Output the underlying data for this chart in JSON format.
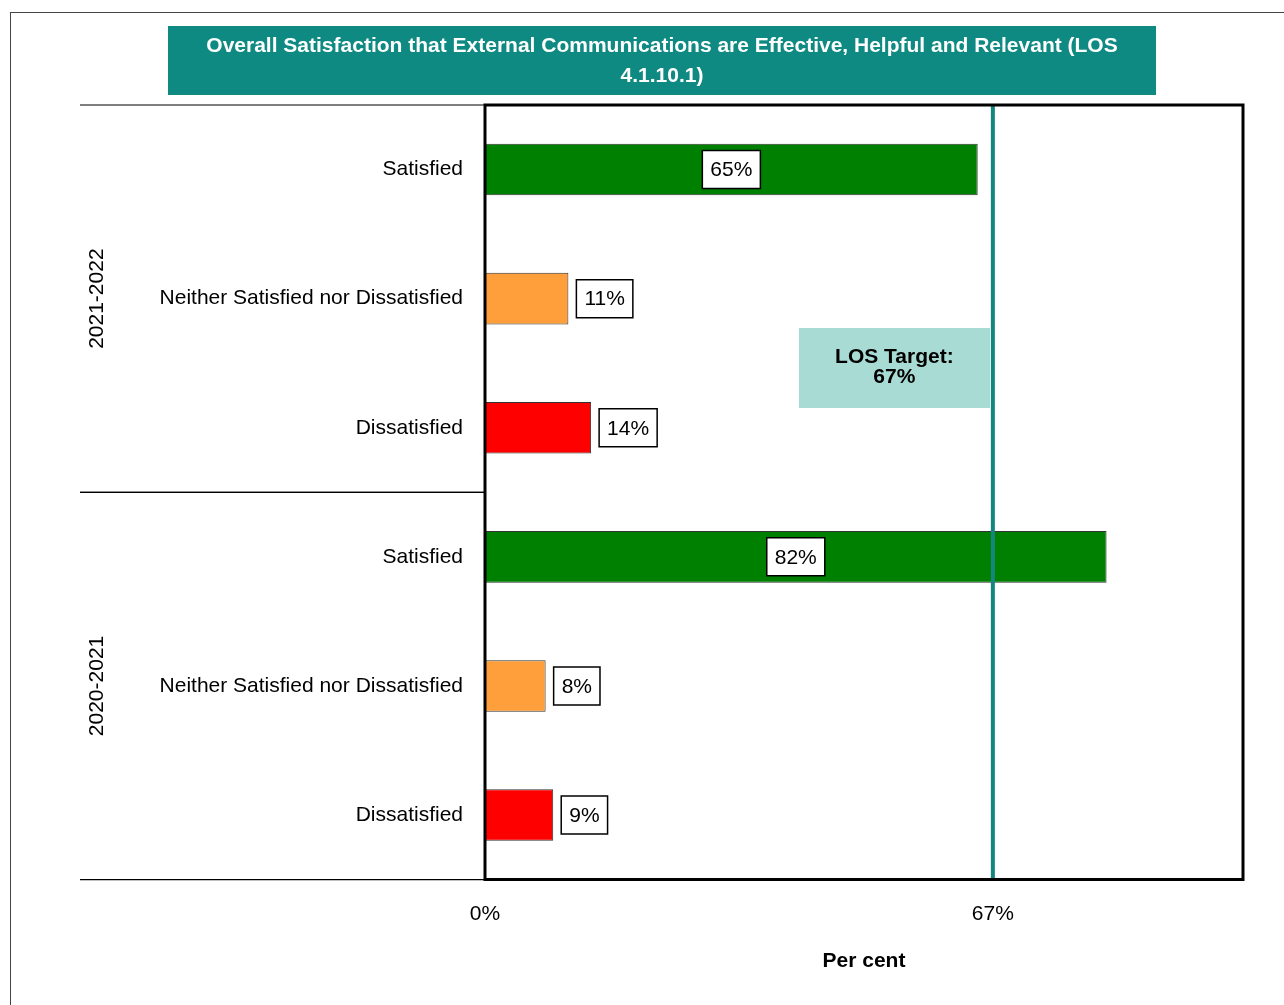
{
  "chart_data": {
    "type": "bar",
    "orientation": "horizontal",
    "title": "Overall Satisfaction that External Communications are Effective, Helpful and Relevant (LOS 4.1.10.1)",
    "xlabel": "Per cent",
    "categories": [
      "Satisfied",
      "Neither Satisfied nor Dissatisfied",
      "Dissatisfied",
      "Satisfied",
      "Neither Satisfied nor Dissatisfied",
      "Dissatisfied"
    ],
    "values": [
      65,
      11,
      14,
      82,
      8,
      9
    ],
    "value_labels": [
      "65%",
      "11%",
      "14%",
      "82%",
      "8%",
      "9%"
    ],
    "colors": [
      "#008000",
      "#ff9f3b",
      "#ff0000",
      "#008000",
      "#ff9f3b",
      "#ff0000"
    ],
    "xlim": [
      0,
      100
    ],
    "xticks": [
      {
        "value": 0,
        "label": "0%"
      },
      {
        "value": 67,
        "label": "67%"
      }
    ],
    "ref_lines": [
      {
        "axis": "x",
        "value": 67,
        "label": "LOS Target: 67%",
        "color": "#13877f"
      }
    ],
    "annotations": [
      "2021-2022",
      "2020-2021"
    ],
    "grid": false,
    "legend": false
  }
}
